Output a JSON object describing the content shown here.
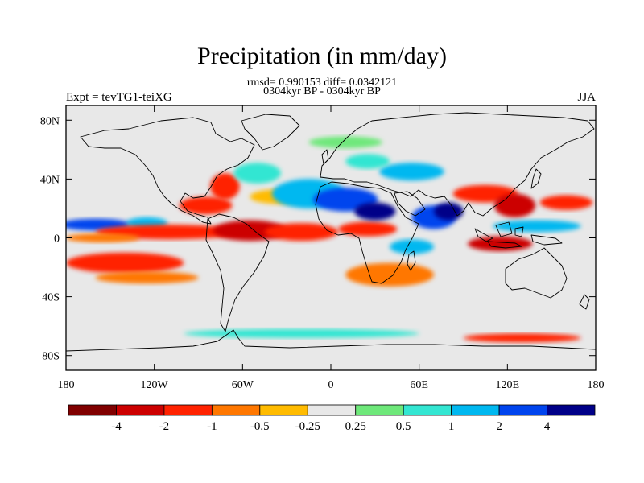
{
  "chart_data": {
    "type": "heatmap",
    "title": "Precipitation (in mm/day)",
    "subtitle_stats": "rmsd= 0.990153 diff= 0.0342121",
    "subtitle_periods": "0304kyr BP - 0304kyr BP",
    "left_string": "Expt = tevTG1-teiXG",
    "right_string": "JJA",
    "variable": "Precipitation difference",
    "units": "mm/day",
    "season": "JJA",
    "rmsd": 0.990153,
    "diff": 0.0342121,
    "xlim": [
      -180,
      180
    ],
    "ylim": [
      -90,
      90
    ],
    "x_ticks": [
      {
        "value": -180,
        "label": "180"
      },
      {
        "value": -120,
        "label": "120W"
      },
      {
        "value": -60,
        "label": "60W"
      },
      {
        "value": 0,
        "label": "0"
      },
      {
        "value": 60,
        "label": "60E"
      },
      {
        "value": 120,
        "label": "120E"
      },
      {
        "value": 180,
        "label": "180"
      }
    ],
    "y_ticks": [
      {
        "value": 80,
        "label": "80N"
      },
      {
        "value": 40,
        "label": "40N"
      },
      {
        "value": 0,
        "label": "0"
      },
      {
        "value": -40,
        "label": "40S"
      },
      {
        "value": -80,
        "label": "80S"
      }
    ],
    "colorbar": {
      "levels": [
        -4,
        -2,
        -1,
        -0.5,
        -0.25,
        0.25,
        0.5,
        1,
        2,
        4
      ],
      "labels": [
        "-4",
        "-2",
        "-1",
        "-0.5",
        "-0.25",
        "0.25",
        "0.5",
        "1",
        "2",
        "4"
      ],
      "colors": [
        "#800000",
        "#cc0000",
        "#ff2200",
        "#ff7700",
        "#ffbb00",
        "#e8e8e8",
        "#6ee87a",
        "#33e6d2",
        "#00b8f0",
        "#0044ee",
        "#000088"
      ]
    },
    "anomaly_regions": [
      {
        "lon": -160,
        "lat": 9,
        "rx": 24,
        "ry": 4,
        "level": 9
      },
      {
        "lon": -125,
        "lat": 10,
        "rx": 14,
        "ry": 4,
        "level": 8
      },
      {
        "lon": -110,
        "lat": 4,
        "rx": 50,
        "ry": 5,
        "level": 2
      },
      {
        "lon": -155,
        "lat": 0,
        "rx": 25,
        "ry": 3,
        "level": 3
      },
      {
        "lon": -140,
        "lat": -17,
        "rx": 40,
        "ry": 7,
        "level": 2
      },
      {
        "lon": -125,
        "lat": -27,
        "rx": 35,
        "ry": 4,
        "level": 3
      },
      {
        "lon": -85,
        "lat": 22,
        "rx": 18,
        "ry": 6,
        "level": 2
      },
      {
        "lon": -72,
        "lat": 35,
        "rx": 10,
        "ry": 9,
        "level": 2
      },
      {
        "lon": -50,
        "lat": 44,
        "rx": 16,
        "ry": 7,
        "level": 7
      },
      {
        "lon": -35,
        "lat": 28,
        "rx": 20,
        "ry": 5,
        "level": 4
      },
      {
        "lon": -55,
        "lat": 5,
        "rx": 25,
        "ry": 7,
        "level": 1
      },
      {
        "lon": -20,
        "lat": 4,
        "rx": 25,
        "ry": 6,
        "level": 2
      },
      {
        "lon": 25,
        "lat": 6,
        "rx": 20,
        "ry": 5,
        "level": 2
      },
      {
        "lon": -15,
        "lat": 30,
        "rx": 25,
        "ry": 10,
        "level": 8
      },
      {
        "lon": 10,
        "lat": 26,
        "rx": 22,
        "ry": 8,
        "level": 9
      },
      {
        "lon": 30,
        "lat": 18,
        "rx": 14,
        "ry": 6,
        "level": 10
      },
      {
        "lon": 55,
        "lat": 45,
        "rx": 22,
        "ry": 6,
        "level": 8
      },
      {
        "lon": 25,
        "lat": 52,
        "rx": 15,
        "ry": 5,
        "level": 7
      },
      {
        "lon": 70,
        "lat": 14,
        "rx": 15,
        "ry": 8,
        "level": 9
      },
      {
        "lon": 80,
        "lat": 18,
        "rx": 10,
        "ry": 6,
        "level": 10
      },
      {
        "lon": 55,
        "lat": -6,
        "rx": 15,
        "ry": 5,
        "level": 8
      },
      {
        "lon": 105,
        "lat": 30,
        "rx": 22,
        "ry": 6,
        "level": 2
      },
      {
        "lon": 125,
        "lat": 22,
        "rx": 14,
        "ry": 8,
        "level": 1
      },
      {
        "lon": 160,
        "lat": 24,
        "rx": 18,
        "ry": 5,
        "level": 2
      },
      {
        "lon": 140,
        "lat": 8,
        "rx": 30,
        "ry": 4,
        "level": 8
      },
      {
        "lon": 115,
        "lat": -4,
        "rx": 22,
        "ry": 5,
        "level": 1
      },
      {
        "lon": 40,
        "lat": -25,
        "rx": 30,
        "ry": 8,
        "level": 3
      },
      {
        "lon": -20,
        "lat": -65,
        "rx": 80,
        "ry": 3,
        "level": 7
      },
      {
        "lon": 130,
        "lat": -68,
        "rx": 40,
        "ry": 3,
        "level": 2
      },
      {
        "lon": 10,
        "lat": 65,
        "rx": 25,
        "ry": 4,
        "level": 6
      }
    ]
  }
}
